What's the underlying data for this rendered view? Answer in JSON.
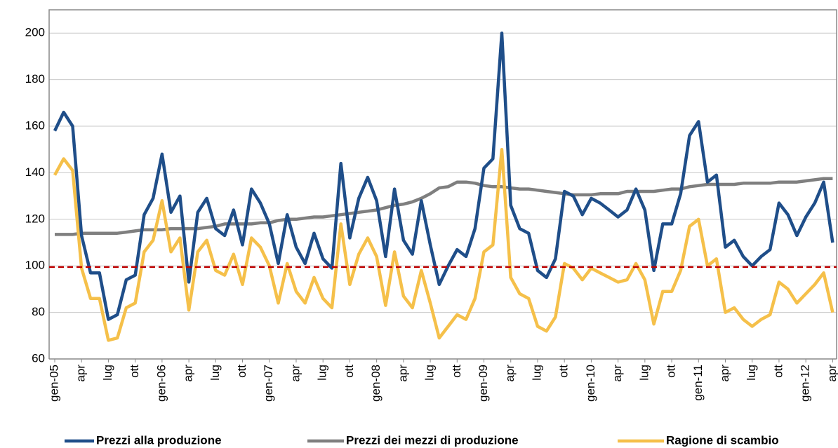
{
  "chart_data": {
    "type": "line",
    "categories": [
      "gen-05",
      null,
      null,
      "apr",
      null,
      null,
      "lug",
      null,
      null,
      "ott",
      null,
      null,
      "gen-06",
      null,
      null,
      "apr",
      null,
      null,
      "lug",
      null,
      null,
      "ott",
      null,
      null,
      "gen-07",
      null,
      null,
      "apr",
      null,
      null,
      "lug",
      null,
      null,
      "ott",
      null,
      null,
      "gen-08",
      null,
      null,
      "apr",
      null,
      null,
      "lug",
      null,
      null,
      "ott",
      null,
      null,
      "gen-09",
      null,
      null,
      "apr",
      null,
      null,
      "lug",
      null,
      null,
      "ott",
      null,
      null,
      "gen-10",
      null,
      null,
      "apr",
      null,
      null,
      "lug",
      null,
      null,
      "ott",
      null,
      null,
      "gen-11",
      null,
      null,
      "apr",
      null,
      null,
      "lug",
      null,
      null,
      "ott",
      null,
      null,
      "gen-12",
      null,
      null,
      "apr"
    ],
    "series": [
      {
        "name": "Prezzi alla produzione",
        "color": "#1f4e89",
        "values": [
          158,
          166,
          160,
          113,
          97,
          97,
          77,
          79,
          94,
          96,
          122,
          129,
          148,
          123,
          130,
          93,
          123,
          129,
          116,
          113,
          124,
          109,
          133,
          127,
          118,
          101,
          122,
          108,
          101,
          114,
          103,
          99,
          144,
          112,
          129,
          138,
          128,
          104,
          133,
          111,
          105,
          128,
          109,
          92,
          100,
          107,
          104,
          116,
          142,
          146,
          200,
          126,
          116,
          114,
          98,
          95,
          103,
          132,
          130,
          122,
          129,
          127,
          124,
          121,
          124,
          133,
          124,
          98,
          118,
          118,
          131,
          156,
          162,
          136,
          139,
          108,
          111,
          104,
          100,
          104,
          107,
          127,
          122,
          113,
          121,
          127,
          136,
          110
        ]
      },
      {
        "name": "Prezzi dei mezzi di produzione",
        "color": "#7f7f7f",
        "values": [
          113.5,
          113.5,
          113.5,
          114,
          114,
          114,
          114,
          114,
          114.5,
          115,
          115.5,
          115.5,
          115.5,
          116,
          116,
          116,
          116,
          116.5,
          117,
          118,
          118,
          118,
          118,
          118.5,
          118.5,
          119.5,
          120,
          120,
          120.5,
          121,
          121,
          121.5,
          122,
          122.5,
          123,
          123.5,
          124,
          125,
          126,
          126.5,
          127.5,
          129,
          131,
          133.5,
          134,
          136,
          136,
          135.5,
          134.5,
          134,
          134,
          133.5,
          133,
          133,
          132.5,
          132,
          131.5,
          131,
          130.5,
          130.5,
          130.5,
          131,
          131,
          131,
          132,
          132,
          132,
          132,
          132.5,
          133,
          133,
          134,
          134.5,
          135,
          135,
          135,
          135,
          135.5,
          135.5,
          135.5,
          135.5,
          136,
          136,
          136,
          136.5,
          137,
          137.5,
          137.5
        ]
      },
      {
        "name": "Ragione di scambio",
        "color": "#f5c04a",
        "values": [
          139,
          146,
          141,
          99,
          86,
          86,
          68,
          69,
          82,
          84,
          106,
          111,
          128,
          106,
          112,
          81,
          106,
          111,
          98,
          96,
          105,
          92,
          112,
          108,
          100,
          84,
          101,
          89,
          84,
          95,
          86,
          82,
          118,
          92,
          105,
          112,
          104,
          83,
          106,
          87,
          82,
          98,
          84,
          69,
          74,
          79,
          77,
          86,
          106,
          109,
          150,
          95,
          88,
          86,
          74,
          72,
          78,
          101,
          99,
          94,
          99,
          97,
          95,
          93,
          94,
          101,
          94,
          75,
          89,
          89,
          98,
          117,
          120,
          100,
          103,
          80,
          82,
          77,
          74,
          77,
          79,
          93,
          90,
          84,
          88,
          92,
          97,
          80
        ]
      }
    ],
    "reference_line": {
      "value": 99.5,
      "color": "#c00000"
    },
    "ylim": [
      60,
      210
    ],
    "yticks": [
      60,
      80,
      100,
      120,
      140,
      160,
      180,
      200
    ],
    "grid": true
  }
}
